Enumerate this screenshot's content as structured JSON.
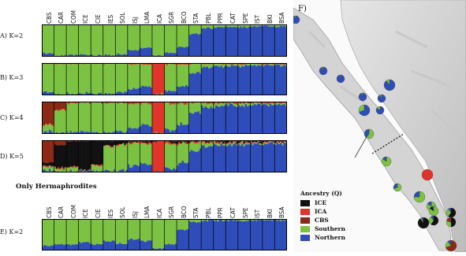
{
  "section_title": "Only Hermaphrodites",
  "map": {
    "panel_letter": "F)"
  },
  "legend": {
    "title": "Ancestry (Q)",
    "items": [
      {
        "label": "ICE",
        "color": "#111111"
      },
      {
        "label": "ICA",
        "color": "#e0342a"
      },
      {
        "label": "CBS",
        "color": "#8b2a16"
      },
      {
        "label": "Southern",
        "color": "#7cc242"
      },
      {
        "label": "Northern",
        "color": "#2f4db8"
      }
    ]
  },
  "colors": {
    "ICE": "#111111",
    "ICA": "#e0342a",
    "CBS": "#8b2a16",
    "Southern": "#7cc242",
    "Northern": "#2f4db8"
  },
  "chart_data": [
    {
      "type": "bar",
      "stacked": true,
      "label": "A) K=2",
      "categories": [
        "CBS",
        "CAR",
        "COM",
        "ICE",
        "CIE",
        "IES",
        "SOL",
        "ISJ",
        "LMA",
        "ICA",
        "SGR",
        "BCO",
        "STA",
        "PBL",
        "PPR",
        "CAT",
        "SPE",
        "IST",
        "BKI",
        "BSA"
      ],
      "series": [
        {
          "name": "Southern",
          "values": [
            0.9,
            0.97,
            0.95,
            0.93,
            0.96,
            0.95,
            0.92,
            0.8,
            0.72,
            0.97,
            0.88,
            0.7,
            0.3,
            0.12,
            0.08,
            0.07,
            0.08,
            0.06,
            0.05,
            0.06
          ]
        },
        {
          "name": "Northern",
          "values": [
            0.1,
            0.03,
            0.05,
            0.07,
            0.04,
            0.05,
            0.08,
            0.2,
            0.28,
            0.03,
            0.12,
            0.3,
            0.7,
            0.88,
            0.92,
            0.93,
            0.92,
            0.94,
            0.95,
            0.94
          ]
        }
      ]
    },
    {
      "type": "bar",
      "stacked": true,
      "label": "B) K=3",
      "categories": [
        "CBS",
        "CAR",
        "COM",
        "ICE",
        "CIE",
        "IES",
        "SOL",
        "ISJ",
        "LMA",
        "ICA",
        "SGR",
        "BCO",
        "STA",
        "PBL",
        "PPR",
        "CAT",
        "SPE",
        "IST",
        "BKI",
        "BSA"
      ],
      "series": [
        {
          "name": "ICA",
          "values": [
            0.02,
            0.02,
            0.02,
            0.02,
            0.02,
            0.02,
            0.02,
            0.04,
            0.05,
            0.96,
            0.05,
            0.04,
            0.03,
            0.03,
            0.03,
            0.03,
            0.03,
            0.03,
            0.03,
            0.03
          ]
        },
        {
          "name": "Southern",
          "values": [
            0.88,
            0.95,
            0.93,
            0.91,
            0.94,
            0.93,
            0.9,
            0.76,
            0.68,
            0.02,
            0.83,
            0.66,
            0.28,
            0.11,
            0.07,
            0.06,
            0.07,
            0.05,
            0.04,
            0.05
          ]
        },
        {
          "name": "Northern",
          "values": [
            0.1,
            0.03,
            0.05,
            0.07,
            0.04,
            0.05,
            0.08,
            0.2,
            0.27,
            0.02,
            0.12,
            0.3,
            0.69,
            0.86,
            0.9,
            0.91,
            0.9,
            0.92,
            0.93,
            0.92
          ]
        }
      ]
    },
    {
      "type": "bar",
      "stacked": true,
      "label": "C) K=4",
      "categories": [
        "CBS",
        "CAR",
        "COM",
        "ICE",
        "CIE",
        "IES",
        "SOL",
        "ISJ",
        "LMA",
        "ICA",
        "SGR",
        "BCO",
        "STA",
        "PBL",
        "PPR",
        "CAT",
        "SPE",
        "IST",
        "BKI",
        "BSA"
      ],
      "series": [
        {
          "name": "CBS",
          "values": [
            0.7,
            0.25,
            0.03,
            0.02,
            0.02,
            0.02,
            0.02,
            0.02,
            0.02,
            0.01,
            0.02,
            0.02,
            0.02,
            0.02,
            0.02,
            0.02,
            0.02,
            0.02,
            0.02,
            0.02
          ]
        },
        {
          "name": "ICA",
          "values": [
            0.02,
            0.02,
            0.02,
            0.02,
            0.02,
            0.02,
            0.02,
            0.04,
            0.05,
            0.96,
            0.05,
            0.04,
            0.03,
            0.03,
            0.03,
            0.03,
            0.03,
            0.03,
            0.03,
            0.03
          ]
        },
        {
          "name": "Southern",
          "values": [
            0.2,
            0.7,
            0.9,
            0.89,
            0.92,
            0.91,
            0.88,
            0.74,
            0.66,
            0.02,
            0.81,
            0.64,
            0.3,
            0.12,
            0.08,
            0.06,
            0.07,
            0.05,
            0.04,
            0.05
          ]
        },
        {
          "name": "Northern",
          "values": [
            0.08,
            0.03,
            0.05,
            0.07,
            0.04,
            0.05,
            0.08,
            0.2,
            0.27,
            0.01,
            0.12,
            0.3,
            0.65,
            0.83,
            0.87,
            0.89,
            0.88,
            0.9,
            0.91,
            0.9
          ]
        }
      ]
    },
    {
      "type": "bar",
      "stacked": true,
      "label": "D) K=5",
      "categories": [
        "CBS",
        "CAR",
        "COM",
        "ICE",
        "CIE",
        "IES",
        "SOL",
        "ISJ",
        "LMA",
        "ICA",
        "SGR",
        "BCO",
        "STA",
        "PBL",
        "PPR",
        "CAT",
        "SPE",
        "IST",
        "BKI",
        "BSA"
      ],
      "series": [
        {
          "name": "CBS",
          "values": [
            0.7,
            0.15,
            0.02,
            0.02,
            0.02,
            0.02,
            0.02,
            0.02,
            0.02,
            0.01,
            0.02,
            0.02,
            0.02,
            0.02,
            0.02,
            0.02,
            0.02,
            0.02,
            0.02,
            0.02
          ]
        },
        {
          "name": "ICE",
          "values": [
            0.1,
            0.7,
            0.8,
            0.9,
            0.75,
            0.15,
            0.1,
            0.05,
            0.05,
            0.01,
            0.05,
            0.05,
            0.04,
            0.03,
            0.05,
            0.04,
            0.04,
            0.03,
            0.03,
            0.03
          ]
        },
        {
          "name": "ICA",
          "values": [
            0.02,
            0.02,
            0.02,
            0.02,
            0.02,
            0.02,
            0.02,
            0.04,
            0.05,
            0.96,
            0.05,
            0.04,
            0.03,
            0.03,
            0.03,
            0.03,
            0.03,
            0.03,
            0.03,
            0.03
          ]
        },
        {
          "name": "Southern",
          "values": [
            0.12,
            0.1,
            0.12,
            0.02,
            0.17,
            0.76,
            0.78,
            0.69,
            0.61,
            0.01,
            0.76,
            0.59,
            0.25,
            0.1,
            0.05,
            0.05,
            0.05,
            0.04,
            0.03,
            0.04
          ]
        },
        {
          "name": "Northern",
          "values": [
            0.06,
            0.03,
            0.04,
            0.04,
            0.04,
            0.05,
            0.08,
            0.2,
            0.27,
            0.01,
            0.12,
            0.3,
            0.66,
            0.82,
            0.85,
            0.86,
            0.86,
            0.88,
            0.89,
            0.88
          ]
        }
      ]
    },
    {
      "type": "bar",
      "stacked": true,
      "label": "E) K=2",
      "categories": [
        "CBS",
        "CAR",
        "COM",
        "ICE",
        "CIE",
        "IES",
        "SOL",
        "ISJ",
        "LMA",
        "ICA",
        "SGR",
        "BCO",
        "STA",
        "PBL",
        "PPR",
        "CAT",
        "SPE",
        "IST",
        "BKI",
        "BSA"
      ],
      "series": [
        {
          "name": "Southern",
          "values": [
            0.85,
            0.8,
            0.82,
            0.75,
            0.8,
            0.7,
            0.78,
            0.65,
            0.7,
            0.95,
            0.8,
            0.35,
            0.1,
            0.05,
            0.05,
            0.04,
            0.05,
            0.04,
            0.03,
            0.04
          ]
        },
        {
          "name": "Northern",
          "values": [
            0.15,
            0.2,
            0.18,
            0.25,
            0.2,
            0.3,
            0.22,
            0.35,
            0.3,
            0.05,
            0.2,
            0.65,
            0.9,
            0.95,
            0.95,
            0.96,
            0.95,
            0.96,
            0.97,
            0.96
          ]
        }
      ]
    }
  ],
  "map_pies": [
    {
      "population": "BSA",
      "values": {
        "Northern": 0.95,
        "Southern": 0.05
      }
    },
    {
      "population": "BKI",
      "values": {
        "Northern": 0.95,
        "Southern": 0.05
      }
    },
    {
      "population": "IST",
      "values": {
        "Northern": 0.96,
        "Southern": 0.04
      }
    },
    {
      "population": "SPE",
      "values": {
        "Northern": 0.95,
        "Southern": 0.05
      }
    },
    {
      "population": "CAT",
      "values": {
        "Northern": 0.93,
        "Southern": 0.07
      }
    },
    {
      "population": "PPR",
      "values": {
        "Northern": 0.9,
        "Southern": 0.1
      }
    },
    {
      "population": "PBL",
      "values": {
        "Northern": 0.85,
        "Southern": 0.15
      }
    },
    {
      "population": "STA",
      "values": {
        "Northern": 0.7,
        "Southern": 0.3
      }
    },
    {
      "population": "BCO",
      "values": {
        "Southern": 0.6,
        "Northern": 0.4
      }
    },
    {
      "population": "SGR",
      "values": {
        "Southern": 0.85,
        "Northern": 0.15
      }
    },
    {
      "population": "ICA",
      "values": {
        "ICA": 1.0
      }
    },
    {
      "population": "LMA",
      "values": {
        "Southern": 0.7,
        "Northern": 0.3
      }
    },
    {
      "population": "ISJ",
      "values": {
        "Southern": 0.75,
        "Northern": 0.25
      }
    },
    {
      "population": "SOL",
      "values": {
        "Southern": 0.85,
        "Northern": 0.15
      }
    },
    {
      "population": "IES",
      "values": {
        "Southern": 0.85,
        "ICE": 0.1,
        "Northern": 0.05
      }
    },
    {
      "population": "CIE",
      "values": {
        "ICE": 0.6,
        "Southern": 0.3,
        "Northern": 0.1
      }
    },
    {
      "population": "ICE",
      "values": {
        "ICE": 0.9,
        "Southern": 0.05,
        "Northern": 0.05
      }
    },
    {
      "population": "COM",
      "values": {
        "ICE": 0.6,
        "Southern": 0.3,
        "Northern": 0.1
      }
    },
    {
      "population": "CAR",
      "values": {
        "ICE": 0.5,
        "Southern": 0.3,
        "CBS": 0.2
      }
    },
    {
      "population": "CBS",
      "values": {
        "CBS": 0.7,
        "Southern": 0.2,
        "Northern": 0.1
      }
    }
  ]
}
